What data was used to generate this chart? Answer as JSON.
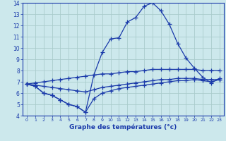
{
  "xlabel": "Graphe des températures (°c)",
  "bg_color": "#cce8ec",
  "grid_color": "#aacccc",
  "line_color": "#1a3aaa",
  "xlim": [
    -0.5,
    23.5
  ],
  "ylim": [
    4,
    14
  ],
  "yticks": [
    4,
    5,
    6,
    7,
    8,
    9,
    10,
    11,
    12,
    13,
    14
  ],
  "xticks": [
    0,
    1,
    2,
    3,
    4,
    5,
    6,
    7,
    8,
    9,
    10,
    11,
    12,
    13,
    14,
    15,
    16,
    17,
    18,
    19,
    20,
    21,
    22,
    23
  ],
  "hours": [
    0,
    1,
    2,
    3,
    4,
    5,
    6,
    7,
    8,
    9,
    10,
    11,
    12,
    13,
    14,
    15,
    16,
    17,
    18,
    19,
    20,
    21,
    22,
    23
  ],
  "temp_curve": [
    6.8,
    6.6,
    6.0,
    5.8,
    5.4,
    5.0,
    4.8,
    4.3,
    7.6,
    9.6,
    10.8,
    10.9,
    12.3,
    12.7,
    13.7,
    14.0,
    13.3,
    12.1,
    10.4,
    9.1,
    8.2,
    7.4,
    6.9,
    7.3
  ],
  "line2": [
    6.8,
    6.7,
    6.6,
    6.5,
    6.4,
    6.3,
    6.2,
    6.1,
    6.3,
    6.5,
    6.6,
    6.7,
    6.8,
    6.9,
    7.0,
    7.1,
    7.2,
    7.2,
    7.3,
    7.3,
    7.3,
    7.2,
    7.2,
    7.2
  ],
  "line3": [
    6.8,
    6.9,
    7.0,
    7.1,
    7.2,
    7.3,
    7.4,
    7.5,
    7.6,
    7.7,
    7.7,
    7.8,
    7.9,
    7.9,
    8.0,
    8.1,
    8.1,
    8.1,
    8.1,
    8.1,
    8.1,
    8.0,
    8.0,
    8.0
  ],
  "line4": [
    6.8,
    6.6,
    6.0,
    5.8,
    5.4,
    5.0,
    4.8,
    4.3,
    5.5,
    6.0,
    6.2,
    6.4,
    6.5,
    6.6,
    6.7,
    6.8,
    6.9,
    7.0,
    7.1,
    7.1,
    7.2,
    7.1,
    7.0,
    7.2
  ]
}
